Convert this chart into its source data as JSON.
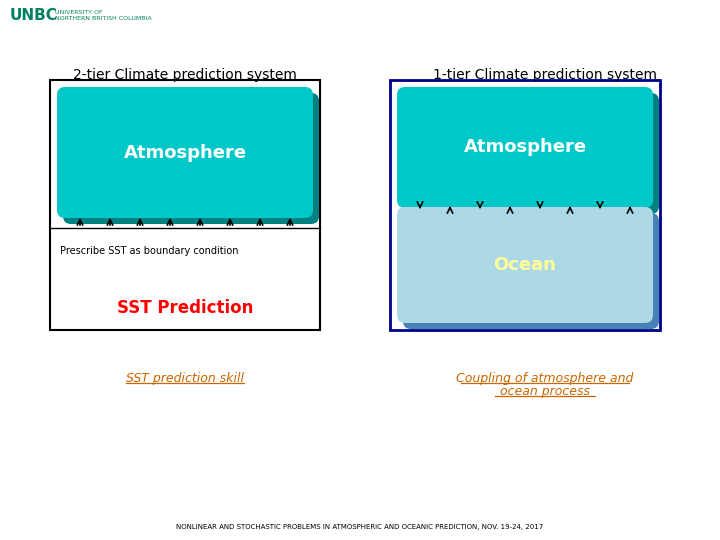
{
  "title_left": "2-tier Climate prediction system",
  "title_right": "1-tier Climate prediction system",
  "atm_text": "Atmosphere",
  "ocean_text": "Ocean",
  "sst_text": "SST Prediction",
  "prescribe_text": "Prescribe SST as boundary condition",
  "sst_skill_text": "SST prediction skill",
  "coupling_line1": "Coupling of atmosphere and",
  "coupling_line2": "ocean process",
  "footer_text": "NONLINEAR AND STOCHASTIC PROBLEMS IN ATMOSPHERIC AND OCEANIC PREDICTION, NOV. 19-24, 2017",
  "teal_color": "#00C8C8",
  "teal_dark": "#008080",
  "blue_color": "#ADD8E6",
  "blue_dark": "#4682B4",
  "red_color": "#FF0000",
  "link_color": "#CC6600",
  "bg_color": "#FFFFFF",
  "box_border_left": "#000000",
  "box_border_right": "#00008B",
  "arrow_color": "#000000",
  "num_arrows": 8
}
